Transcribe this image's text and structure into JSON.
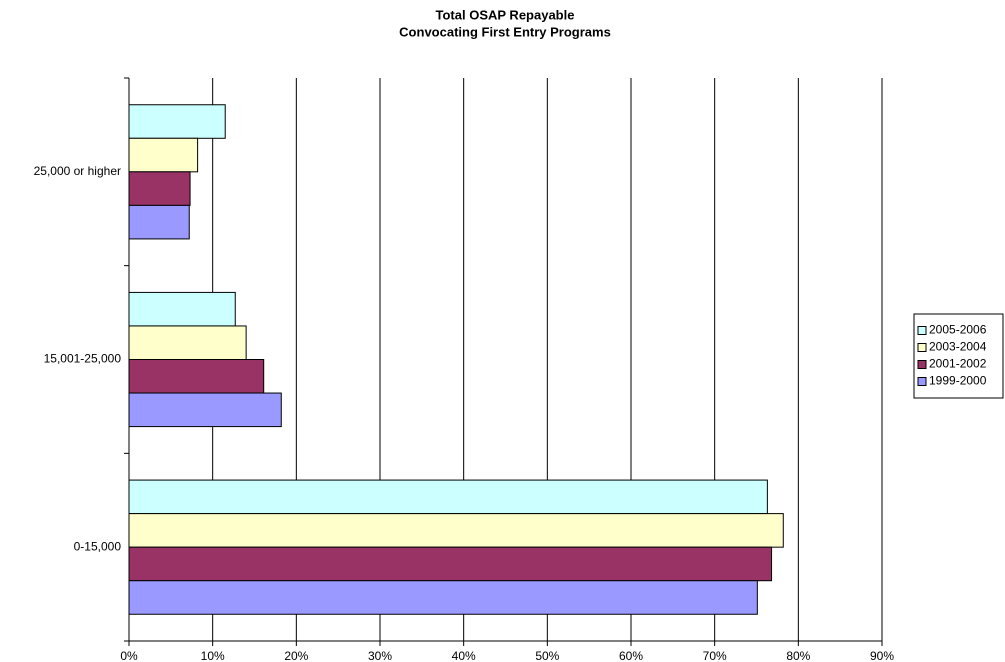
{
  "chart_data": {
    "type": "barh",
    "title": [
      "Total OSAP Repayable",
      "Convocating First Entry Programs"
    ],
    "categories": [
      "0-15,000",
      "15,001-25,000",
      "25,000 or higher"
    ],
    "series": [
      {
        "name": "2005-2006",
        "color": "#ccffff",
        "values": [
          76.3,
          12.7,
          11.5
        ]
      },
      {
        "name": "2003-2004",
        "color": "#ffffcc",
        "values": [
          78.2,
          14.0,
          8.2
        ]
      },
      {
        "name": "2001-2002",
        "color": "#993366",
        "values": [
          76.8,
          16.1,
          7.3
        ]
      },
      {
        "name": "1999-2000",
        "color": "#9999ff",
        "values": [
          75.1,
          18.2,
          7.2
        ]
      }
    ],
    "xlim": [
      0,
      90
    ],
    "xticks": [
      {
        "value": 0,
        "label": "0%"
      },
      {
        "value": 10,
        "label": "10%"
      },
      {
        "value": 20,
        "label": "20%"
      },
      {
        "value": 30,
        "label": "30%"
      },
      {
        "value": 40,
        "label": "40%"
      },
      {
        "value": 50,
        "label": "50%"
      },
      {
        "value": 60,
        "label": "60%"
      },
      {
        "value": 70,
        "label": "70%"
      },
      {
        "value": 80,
        "label": "80%"
      },
      {
        "value": 90,
        "label": "90%"
      }
    ],
    "grid": true,
    "legend": "right"
  }
}
